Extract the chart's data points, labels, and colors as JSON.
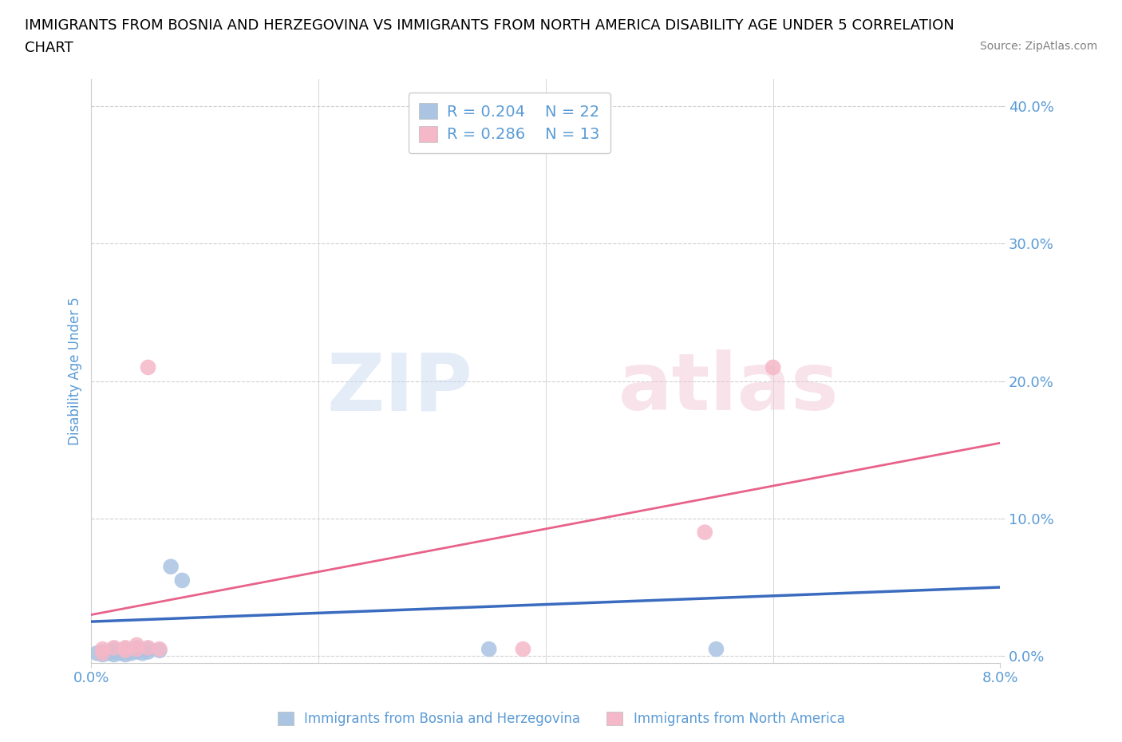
{
  "title_line1": "IMMIGRANTS FROM BOSNIA AND HERZEGOVINA VS IMMIGRANTS FROM NORTH AMERICA DISABILITY AGE UNDER 5 CORRELATION",
  "title_line2": "CHART",
  "source": "Source: ZipAtlas.com",
  "ylabel": "Disability Age Under 5",
  "xmin": 0.0,
  "xmax": 0.08,
  "ymin": -0.005,
  "ymax": 0.42,
  "yticks": [
    0.0,
    0.1,
    0.2,
    0.3,
    0.4
  ],
  "ytick_labels": [
    "0.0%",
    "10.0%",
    "20.0%",
    "30.0%",
    "40.0%"
  ],
  "xticks": [
    0.0,
    0.08
  ],
  "xtick_labels": [
    "0.0%",
    "8.0%"
  ],
  "bosnia_R": 0.204,
  "bosnia_N": 22,
  "northam_R": 0.286,
  "northam_N": 13,
  "bosnia_color": "#aac4e2",
  "northam_color": "#f5b8c8",
  "bosnia_line_color": "#3a6bbf",
  "northam_line_color": "#e8628a",
  "bosnia_x": [
    0.0005,
    0.001,
    0.001,
    0.0015,
    0.002,
    0.002,
    0.002,
    0.0025,
    0.003,
    0.003,
    0.003,
    0.0035,
    0.004,
    0.004,
    0.0045,
    0.005,
    0.005,
    0.006,
    0.007,
    0.008,
    0.035,
    0.055
  ],
  "bosnia_y": [
    0.002,
    0.001,
    0.003,
    0.002,
    0.001,
    0.003,
    0.005,
    0.002,
    0.001,
    0.003,
    0.005,
    0.002,
    0.003,
    0.006,
    0.002,
    0.003,
    0.005,
    0.004,
    0.065,
    0.055,
    0.005,
    0.005
  ],
  "northam_x": [
    0.001,
    0.001,
    0.002,
    0.003,
    0.003,
    0.004,
    0.004,
    0.005,
    0.005,
    0.006,
    0.038,
    0.054,
    0.06
  ],
  "northam_y": [
    0.002,
    0.005,
    0.006,
    0.004,
    0.006,
    0.005,
    0.008,
    0.006,
    0.21,
    0.005,
    0.005,
    0.09,
    0.21
  ],
  "watermark_zip": "ZIP",
  "watermark_atlas": "atlas",
  "background_color": "#ffffff",
  "grid_color": "#d0d0d0",
  "axis_color": "#5b9bd5",
  "tick_color": "#5b9bd5",
  "legend_color": "#5b9bd5",
  "legend_fontsize": 14,
  "title_fontsize": 13,
  "axis_label_fontsize": 12,
  "tick_fontsize": 13
}
